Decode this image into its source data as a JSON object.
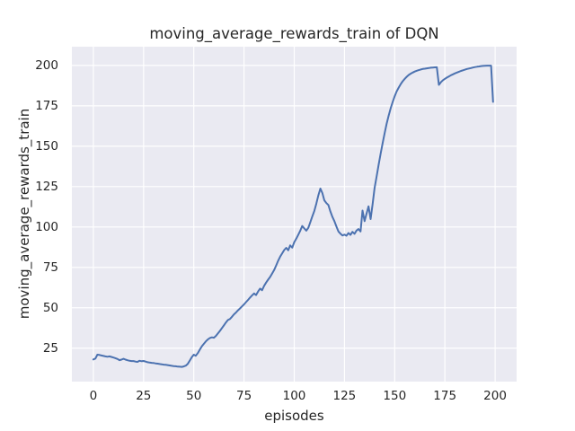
{
  "chart_data": {
    "type": "line",
    "title": "moving_average_rewards_train of DQN",
    "xlabel": "episodes",
    "ylabel": "moving_average_rewards_train",
    "legend": "none",
    "grid": true,
    "background_color": "#EAEAF2",
    "grid_color": "#FFFFFF",
    "line_color": "#4C72B0",
    "text_color": "#262626",
    "xticks": [
      0,
      25,
      50,
      75,
      100,
      125,
      150,
      175,
      200
    ],
    "yticks": [
      25,
      50,
      75,
      100,
      125,
      150,
      175,
      200
    ],
    "xlim": [
      -10.7,
      210.7
    ],
    "ylim": [
      4.3,
      211.6
    ],
    "x_start": 0,
    "x_step": 1,
    "series_name": "moving_average_rewards_train",
    "values": [
      18.0,
      18.6,
      21.0,
      20.8,
      20.5,
      20.2,
      19.9,
      19.7,
      19.9,
      19.6,
      19.2,
      18.8,
      18.3,
      17.6,
      17.9,
      18.4,
      17.9,
      17.5,
      17.2,
      17.0,
      17.0,
      16.7,
      16.5,
      17.2,
      16.9,
      17.1,
      16.7,
      16.3,
      16.1,
      15.9,
      15.8,
      15.6,
      15.4,
      15.2,
      15.0,
      14.8,
      14.7,
      14.5,
      14.3,
      14.1,
      13.9,
      13.8,
      13.6,
      13.5,
      13.4,
      13.7,
      14.2,
      15.3,
      17.3,
      19.4,
      21.0,
      20.3,
      22.0,
      24.1,
      26.2,
      27.7,
      29.2,
      30.4,
      31.3,
      31.7,
      31.5,
      32.6,
      34.1,
      35.7,
      37.4,
      39.1,
      40.9,
      42.4,
      43.1,
      44.4,
      45.9,
      47.1,
      48.4,
      49.6,
      50.9,
      52.1,
      53.5,
      54.9,
      56.3,
      57.6,
      58.9,
      57.9,
      60.1,
      61.9,
      60.9,
      63.6,
      65.6,
      67.4,
      69.1,
      71.2,
      73.3,
      76.2,
      79.1,
      81.6,
      83.7,
      85.7,
      87.1,
      85.6,
      88.6,
      87.2,
      90.6,
      92.7,
      95.2,
      97.7,
      100.6,
      99.1,
      97.7,
      99.5,
      103.0,
      106.5,
      110.0,
      114.5,
      119.5,
      123.8,
      121.0,
      116.5,
      114.8,
      113.6,
      109.7,
      106.2,
      103.6,
      100.2,
      97.2,
      95.9,
      94.8,
      95.3,
      94.6,
      96.3,
      95.1,
      97.0,
      95.8,
      97.8,
      98.7,
      97.2,
      110.2,
      103.6,
      108.3,
      112.8,
      104.9,
      114.0,
      124.0,
      131.3,
      138.4,
      145.2,
      151.9,
      158.0,
      163.8,
      168.9,
      173.4,
      177.4,
      180.9,
      183.9,
      186.3,
      188.4,
      190.2,
      191.7,
      193.0,
      194.1,
      194.9,
      195.6,
      196.2,
      196.7,
      197.1,
      197.5,
      197.8,
      198.0,
      198.2,
      198.4,
      198.6,
      198.7,
      198.8,
      198.9,
      188.0,
      189.6,
      190.8,
      191.7,
      192.5,
      193.2,
      193.9,
      194.5,
      195.1,
      195.6,
      196.1,
      196.6,
      197.0,
      197.4,
      197.8,
      198.1,
      198.4,
      198.7,
      199.0,
      199.2,
      199.4,
      199.6,
      199.7,
      199.8,
      199.9,
      199.9,
      199.9,
      177.5
    ]
  }
}
